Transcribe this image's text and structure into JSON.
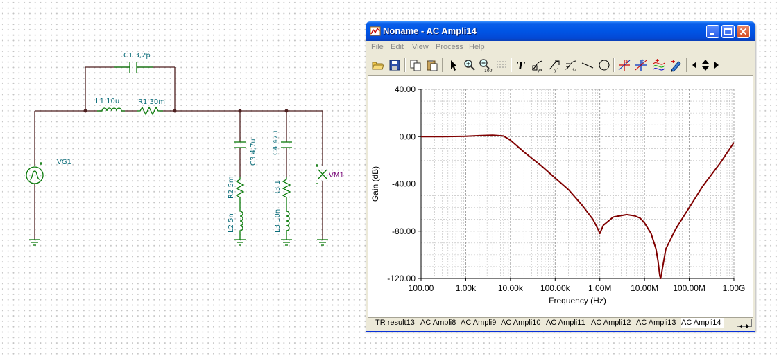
{
  "schematic": {
    "labels": {
      "c1": "C1 3,2p",
      "l1": "L1 10u",
      "r1": "R1 30m",
      "vg1": "VG1",
      "c3": "C3 4,7u",
      "r2": "R2 5m",
      "l2": "L2 5n",
      "c4": "C4 47u",
      "r3": "R3 1",
      "l3": "L3 10n",
      "vm1": "VM1"
    },
    "colors": {
      "wire": "#4d1f1f",
      "component": "#0a7a0a",
      "label": "#0b6d7a",
      "meter": "#7a0a7a"
    }
  },
  "window": {
    "title": "Noname - AC Ampli14",
    "controls": [
      "minimize-icon",
      "maximize-icon",
      "close-icon"
    ],
    "menu": [
      "File",
      "Edit",
      "View",
      "Process",
      "Help"
    ],
    "toolbar": [
      "open-folder-icon",
      "save-icon",
      "copy-icon",
      "paste-icon",
      "pointer-icon",
      "zoom-in-icon",
      "zoom-100-icon",
      "grid-icon",
      "text-icon",
      "curve-label-icon",
      "curve-label2-icon",
      "scale-label-icon",
      "line-icon",
      "circle-icon",
      "cursor-a-icon",
      "cursor-b-icon",
      "curve-style-icon",
      "pen-icon",
      "arrow-left-icon",
      "arrow-updown-icon",
      "arrow-right-icon"
    ],
    "tabs": [
      {
        "label": "TR result13",
        "active": false
      },
      {
        "label": "AC Ampli8",
        "active": false
      },
      {
        "label": "AC Ampli9",
        "active": false
      },
      {
        "label": "AC Ampli10",
        "active": false
      },
      {
        "label": "AC Ampli11",
        "active": false
      },
      {
        "label": "AC Ampli12",
        "active": false
      },
      {
        "label": "AC Ampli13",
        "active": false
      },
      {
        "label": "AC Ampli14",
        "active": true
      }
    ]
  },
  "chart_data": {
    "type": "line",
    "xlabel": "Frequency (Hz)",
    "ylabel": "Gain (dB)",
    "x_scale": "log",
    "xlim": [
      100,
      1000000000
    ],
    "ylim": [
      -120,
      40
    ],
    "x_tick_labels": [
      "100.00",
      "1.00k",
      "10.00k",
      "100.00k",
      "1.00M",
      "10.00M",
      "100.00M",
      "1.00G"
    ],
    "y_tick_labels": [
      "40.00",
      "0.00",
      "-40.00",
      "-80.00",
      "-120.00"
    ],
    "y_ticks": [
      40,
      0,
      -40,
      -80,
      -120
    ],
    "grid": true,
    "line_color": "#800000",
    "series": [
      {
        "x": [
          100,
          300,
          1000,
          2000,
          4000,
          7000,
          10000,
          20000,
          50000,
          100000,
          200000,
          400000,
          700000,
          900000,
          1000000,
          1200000,
          2000000,
          4000000,
          6000000,
          8000000,
          10000000,
          14000000,
          18000000,
          20000000,
          22000000,
          23000000,
          25000000,
          30000000,
          50000000,
          100000000,
          200000000,
          500000000,
          1000000000
        ],
        "y": [
          0,
          0,
          0.3,
          0.8,
          1.2,
          0.5,
          -3,
          -13,
          -25,
          -35,
          -45,
          -58,
          -70,
          -78,
          -82,
          -75,
          -68,
          -66,
          -67,
          -69,
          -73,
          -82,
          -95,
          -105,
          -118,
          -120,
          -112,
          -95,
          -78,
          -60,
          -42,
          -22,
          -5
        ]
      }
    ]
  }
}
